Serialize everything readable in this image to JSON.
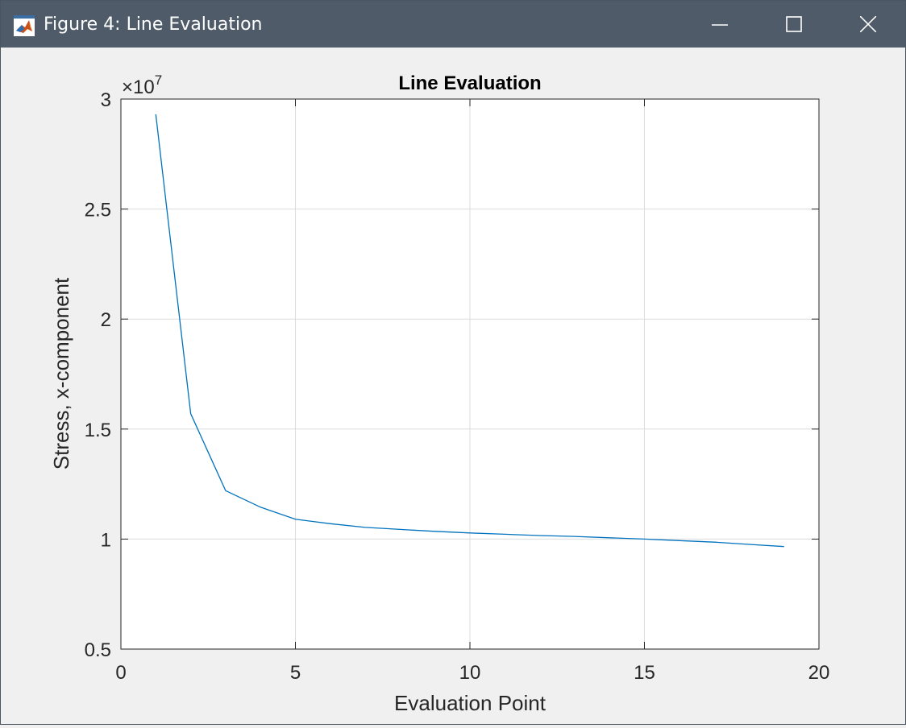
{
  "window": {
    "title": "Figure 4: Line Evaluation",
    "icon": "matlab-icon",
    "controls": {
      "minimize": "minimize-icon",
      "maximize": "maximize-icon",
      "close": "close-icon"
    }
  },
  "chart_data": {
    "type": "line",
    "title": "Line Evaluation",
    "xlabel": "Evaluation Point",
    "ylabel": "Stress, x-component",
    "exponent_label": "×10",
    "exponent_power": "7",
    "xlim": [
      0,
      20
    ],
    "ylim": [
      0.5,
      3
    ],
    "xticks": [
      0,
      5,
      10,
      15,
      20
    ],
    "xtick_labels": [
      "0",
      "5",
      "10",
      "15",
      "20"
    ],
    "yticks": [
      0.5,
      1,
      1.5,
      2,
      2.5,
      3
    ],
    "ytick_labels": [
      "0.5",
      "1",
      "1.5",
      "2",
      "2.5",
      "3"
    ],
    "grid": true,
    "series": [
      {
        "color": "#0072bd",
        "x": [
          1,
          2,
          3,
          4,
          5,
          6,
          7,
          8,
          9,
          10,
          11,
          12,
          13,
          14,
          15,
          16,
          17,
          18,
          19
        ],
        "y": [
          2.93,
          1.57,
          1.22,
          1.145,
          1.09,
          1.07,
          1.053,
          1.044,
          1.035,
          1.028,
          1.022,
          1.016,
          1.012,
          1.006,
          1.0,
          0.993,
          0.986,
          0.976,
          0.966
        ]
      }
    ]
  }
}
